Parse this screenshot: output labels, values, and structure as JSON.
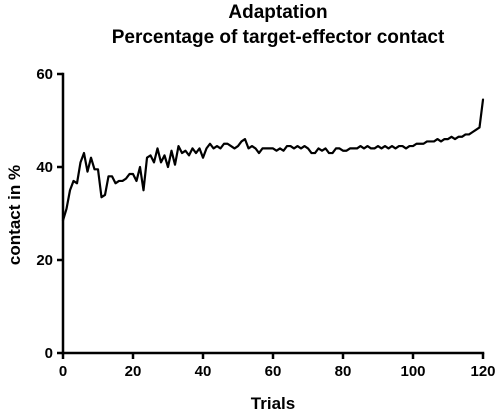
{
  "chart_data": {
    "type": "line",
    "title": "Adaptation",
    "subtitle": "Percentage of target-effector contact",
    "xlabel": "Trials",
    "ylabel": "contact in %",
    "xlim": [
      0,
      120
    ],
    "ylim": [
      0,
      60
    ],
    "xticks": [
      0,
      20,
      40,
      60,
      80,
      100,
      120
    ],
    "yticks": [
      0,
      20,
      40,
      60
    ],
    "grid": false,
    "legend": "none",
    "series": [
      {
        "values": [
          28.5,
          31,
          35,
          37,
          36.5,
          41,
          43,
          39,
          42,
          39.5,
          39.5,
          33.5,
          34,
          38,
          38,
          36.5,
          37,
          37,
          37.5,
          38.5,
          38.5,
          37,
          40,
          35,
          42,
          42.5,
          41,
          44,
          41,
          42.5,
          40,
          43.5,
          40.5,
          44.5,
          43,
          43.5,
          42.5,
          44,
          43,
          44,
          42,
          44,
          45,
          44,
          44.5,
          44,
          45,
          45,
          44.5,
          44,
          44.5,
          45.5,
          46,
          44,
          44.5,
          44,
          43,
          44,
          44,
          44,
          44,
          43.5,
          44,
          43.5,
          44.5,
          44.5,
          44,
          44.5,
          44,
          44.5,
          44,
          43,
          43,
          44,
          43.5,
          44,
          43,
          43,
          44,
          44,
          43.5,
          43.5,
          44,
          44,
          44,
          44.5,
          44,
          44.5,
          44,
          44,
          44.5,
          44,
          44.5,
          44,
          44.5,
          44,
          44.5,
          44.5,
          44,
          44.5,
          44.5,
          45,
          45,
          45,
          45.5,
          45.5,
          45.5,
          46,
          45.5,
          46,
          46,
          46.5,
          46,
          46.5,
          46.5,
          47,
          47,
          47.5,
          48,
          48.5,
          54.5
        ]
      }
    ]
  }
}
